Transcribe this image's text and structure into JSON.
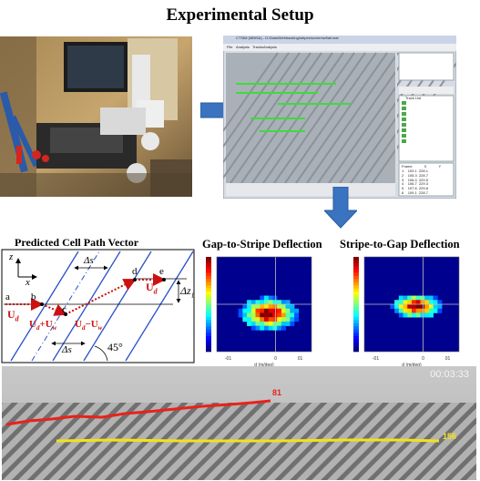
{
  "figure": {
    "title": "Experimental Setup",
    "predicted_title": "Predicted Cell Path Vector",
    "g2s_title": "Gap-to-Stripe Deflection",
    "s2g_title": "Stripe-to-Gap Deflection"
  },
  "vector": {
    "axis_z": "z",
    "axis_x": "x",
    "ds_top": "Δs",
    "ds_bottom": "Δs",
    "pt_a": "a",
    "pt_b": "b",
    "pt_c": "c",
    "pt_d": "d",
    "pt_e": "e",
    "ud_left": "U",
    "ud_left_sub": "d",
    "ud_right": "U",
    "ud_right_sub": "d",
    "sum_label": "U",
    "sum_sub1": "d",
    "sum_plus": "+U",
    "sum_sub2": "w",
    "diff_label": "U",
    "diff_sub1": "d",
    "diff_minus": "−U",
    "diff_sub2": "w",
    "dz": "Δz",
    "dz_sub": "1",
    "angle": "45°"
  },
  "software": {
    "window_title": "CTSIM (MBISA) - D:\\Data\\Wei\\tracking\\stripes\\sc\\mm\\wf\\all.mat",
    "menu": [
      "File",
      "Analysis",
      "Tracks",
      "Analysis"
    ],
    "tracks_header": "Track List",
    "table_cols": [
      "Frame",
      "X",
      "Y"
    ],
    "table_rows": [
      [
        "1",
        "103.1",
        "228.1"
      ],
      [
        "2",
        "105.3",
        "228.7"
      ],
      [
        "3",
        "106.4",
        "229.5"
      ],
      [
        "4",
        "106.7",
        "229.3"
      ],
      [
        "5",
        "107.6",
        "229.8"
      ],
      [
        "6",
        "109.1",
        "228.7"
      ]
    ]
  },
  "tracks": {
    "timestamp": "00:03:33",
    "red_id": "81",
    "yellow_id": "156"
  },
  "heatmap_axes": {
    "g2s_xticks": [
      "-01",
      "0",
      "01"
    ],
    "s2g_xticks": [
      "-01",
      "0",
      "01"
    ],
    "xlabel": "d (m/deg)"
  },
  "colors": {
    "red_track": "#e8221a",
    "yellow_track": "#f2e21a",
    "blue_arrow": "#2e6fb8",
    "dotted_red": "#cc1111",
    "stripe_blue": "#2850c8"
  }
}
